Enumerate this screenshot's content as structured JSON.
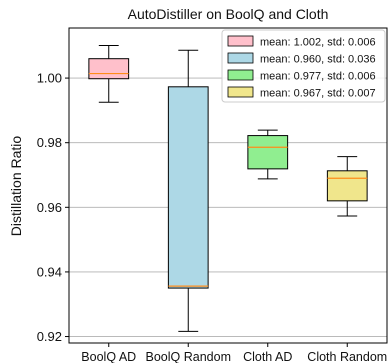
{
  "chart_data": {
    "type": "box",
    "title": "AutoDistiller on BoolQ and Cloth",
    "xlabel": "",
    "ylabel": "Distillation Ratio",
    "ylim": [
      0.918,
      1.0155
    ],
    "y_ticks": [
      0.92,
      0.94,
      0.96,
      0.98,
      1.0
    ],
    "y_tick_labels": [
      "0.92",
      "0.94",
      "0.96",
      "0.98",
      "1.00"
    ],
    "grid": "horizontal",
    "legend_position": "top-right",
    "categories": [
      "BoolQ AD",
      "BoolQ Random",
      "Cloth AD",
      "Cloth Random"
    ],
    "boxes": [
      {
        "category": "BoolQ AD",
        "whisker_low": 0.9925,
        "q1": 0.9998,
        "median": 1.0014,
        "q3": 1.006,
        "whisker_high": 1.0101,
        "color": "#ffc0cb",
        "legend": "mean: 1.002, std: 0.006"
      },
      {
        "category": "BoolQ Random",
        "whisker_low": 0.9216,
        "q1": 0.935,
        "median": 0.9356,
        "q3": 0.9973,
        "whisker_high": 1.0086,
        "color": "#add8e6",
        "legend": "mean: 0.960, std: 0.036"
      },
      {
        "category": "Cloth AD",
        "whisker_low": 0.9688,
        "q1": 0.9719,
        "median": 0.9786,
        "q3": 0.9822,
        "whisker_high": 0.9839,
        "color": "#90ee90",
        "legend": "mean: 0.977, std: 0.006"
      },
      {
        "category": "Cloth Random",
        "whisker_low": 0.9573,
        "q1": 0.962,
        "median": 0.969,
        "q3": 0.9713,
        "whisker_high": 0.9757,
        "color": "#f0e68c",
        "legend": "mean: 0.967, std: 0.007"
      }
    ],
    "median_color": "#ff8c1a"
  }
}
